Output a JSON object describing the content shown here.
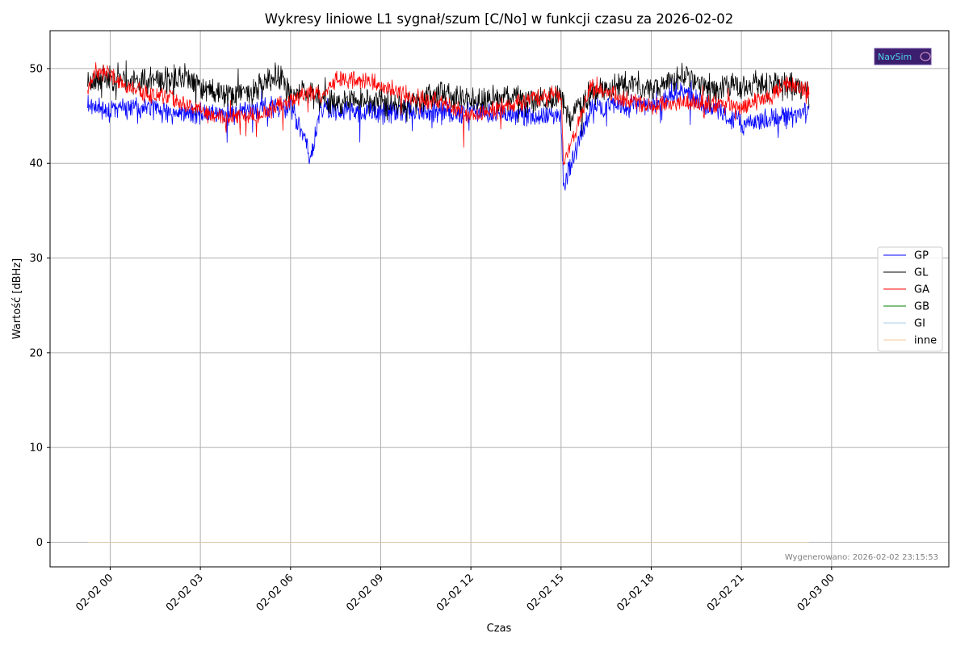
{
  "chart_data": {
    "type": "line",
    "title": "Wykresy liniowe L1 sygnał/szum [C/No] w funkcji czasu za 2026-02-02",
    "xlabel": "Czas",
    "ylabel": "Wartość [dBHz]",
    "x_unit": "hours",
    "xlim": [
      -2.0,
      27.9
    ],
    "ylim": [
      -2.6,
      54.0
    ],
    "x_ticks": [
      0,
      3,
      6,
      9,
      12,
      15,
      18,
      21,
      24
    ],
    "x_tick_labels": [
      "02-02 00",
      "02-02 03",
      "02-02 06",
      "02-02 09",
      "02-02 12",
      "02-02 15",
      "02-02 18",
      "02-02 21",
      "02-03 00"
    ],
    "y_ticks": [
      0,
      10,
      20,
      30,
      40,
      50
    ],
    "grid": true,
    "legend_position": "center-right",
    "series": [
      {
        "name": "GP",
        "color": "#0000ff",
        "x": [
          -0.75,
          0,
          1,
          2,
          3,
          4,
          5,
          6,
          6.7,
          7,
          8,
          9,
          10,
          11,
          12,
          13,
          14,
          15,
          15.08,
          16,
          17,
          18,
          19,
          20,
          21,
          22,
          23,
          23.25
        ],
        "values": [
          46.5,
          45.5,
          46.0,
          45.2,
          45.3,
          45.3,
          45.8,
          46.0,
          40.7,
          45.8,
          45.4,
          45.5,
          45.4,
          45.3,
          45.5,
          45.2,
          45.0,
          44.8,
          37.6,
          46.0,
          46.0,
          46.2,
          48.0,
          45.8,
          44.1,
          44.6,
          45.2,
          45.5
        ],
        "noise": 0.9,
        "seed": 11
      },
      {
        "name": "GL",
        "color": "#000000",
        "x": [
          -0.75,
          0,
          1,
          2,
          2.5,
          3,
          4,
          5,
          5.6,
          6,
          6.7,
          7,
          8,
          9,
          10,
          11,
          12,
          13,
          14,
          15,
          15.3,
          16,
          17,
          18,
          19,
          20,
          21,
          22,
          23,
          23.25
        ],
        "values": [
          48.8,
          49.0,
          48.5,
          48.8,
          49.0,
          48.0,
          47.2,
          48.0,
          49.5,
          47.0,
          47.6,
          46.5,
          46.7,
          46.5,
          46.2,
          47.5,
          46.5,
          46.8,
          46.8,
          46.8,
          44.5,
          47.5,
          48.2,
          48.2,
          49.2,
          48.0,
          48.2,
          48.3,
          48.2,
          47.2
        ],
        "noise": 1.1,
        "seed": 23
      },
      {
        "name": "GA",
        "color": "#ff0000",
        "x": [
          -0.75,
          -0.5,
          0,
          0.5,
          1,
          2,
          3,
          4,
          5,
          6,
          6.7,
          7,
          7.5,
          8,
          9,
          10,
          11,
          12,
          13,
          14,
          15,
          15.08,
          16,
          17,
          18,
          19,
          20,
          21,
          22,
          22.5,
          23,
          23.25
        ],
        "values": [
          48.0,
          49.8,
          49.5,
          48.0,
          47.5,
          46.8,
          45.5,
          44.8,
          45.3,
          46.5,
          47.5,
          47.2,
          48.8,
          48.9,
          48.3,
          47.0,
          46.5,
          45.0,
          45.8,
          46.8,
          47.3,
          40.0,
          48.0,
          46.8,
          46.0,
          46.5,
          46.3,
          46.0,
          47.0,
          48.5,
          48.0,
          47.5
        ],
        "noise": 0.75,
        "seed": 37
      },
      {
        "name": "GB",
        "color": "#008000",
        "x": [
          -0.75,
          23.25
        ],
        "values": [
          0,
          0
        ],
        "noise": 0,
        "seed": 1
      },
      {
        "name": "GI",
        "color": "#aaccee",
        "x": [
          -0.75,
          23.25
        ],
        "values": [
          0,
          0
        ],
        "noise": 0,
        "seed": 2
      },
      {
        "name": "inne",
        "color": "#f5c89a",
        "x": [
          -0.75,
          23.25
        ],
        "values": [
          0,
          0
        ],
        "noise": 0,
        "seed": 3
      }
    ],
    "annotations": [
      "Wygenerowano: 2026-02-02 23:15:53"
    ],
    "logo_text": "NavSim"
  }
}
